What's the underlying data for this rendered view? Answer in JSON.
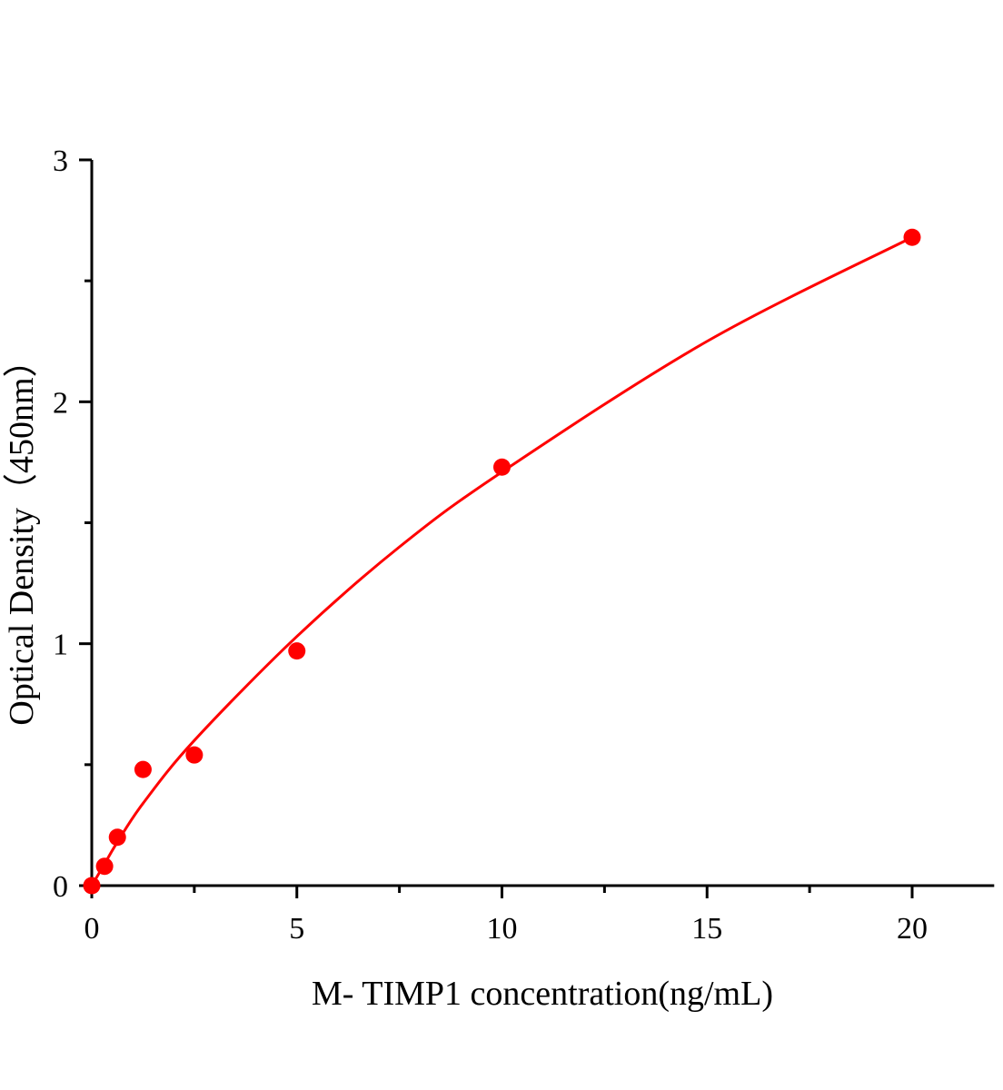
{
  "chart_data": {
    "type": "scatter",
    "title": "",
    "xlabel": "M- TIMP1 concentration(ng/mL)",
    "ylabel": "Optical Density（450nm）",
    "xlim": [
      0,
      22
    ],
    "ylim": [
      0,
      3
    ],
    "xticks": [
      0,
      5,
      10,
      15,
      20
    ],
    "xtick_labels": [
      "0",
      "5",
      "10",
      "15",
      "20"
    ],
    "yticks": [
      0,
      1,
      2,
      3
    ],
    "ytick_labels": [
      "0",
      "1",
      "2",
      "3"
    ],
    "x_minor_ticks": [
      2.5,
      7.5,
      12.5,
      17.5
    ],
    "y_minor_ticks": [
      0.5,
      1.5,
      2.5
    ],
    "grid": false,
    "color": "#ff0000",
    "points": {
      "x": [
        0,
        0.3125,
        0.625,
        1.25,
        2.5,
        5,
        10,
        20
      ],
      "y": [
        0.0,
        0.08,
        0.2,
        0.48,
        0.54,
        0.97,
        1.73,
        2.68
      ]
    },
    "fit_curve": {
      "x": [
        0,
        0.3125,
        0.625,
        1.25,
        2.5,
        5,
        7.5,
        10,
        15,
        20
      ],
      "y": [
        0,
        0.09,
        0.18,
        0.34,
        0.6,
        1.03,
        1.4,
        1.71,
        2.25,
        2.68
      ]
    }
  }
}
